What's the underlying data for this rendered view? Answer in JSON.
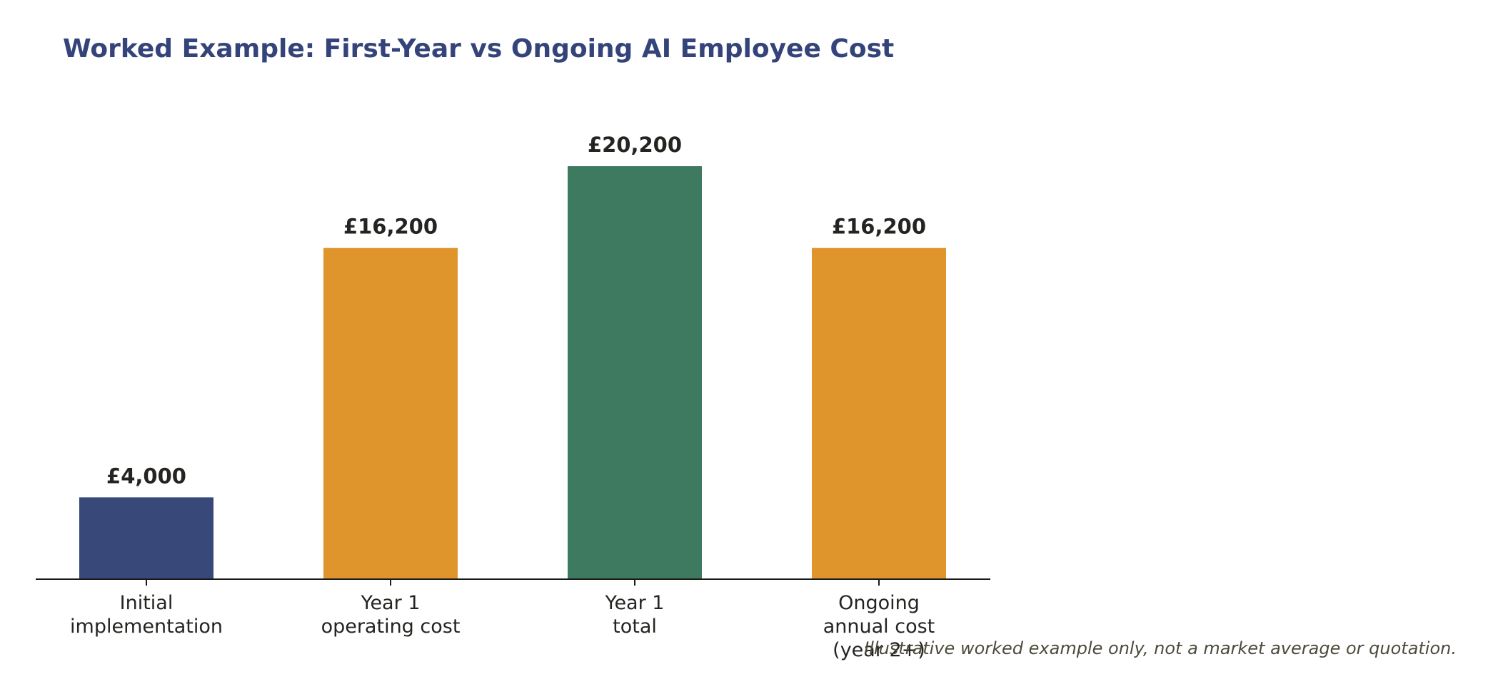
{
  "chart_data": {
    "type": "bar",
    "title": "Worked Example: First-Year vs Ongoing AI Employee Cost",
    "categories": [
      [
        "Initial",
        "implementation"
      ],
      [
        "Year 1",
        "operating cost"
      ],
      [
        "Year 1",
        "total"
      ],
      [
        "Ongoing",
        "annual cost",
        "(year 2+)"
      ]
    ],
    "values": [
      4000,
      16200,
      20200,
      16200
    ],
    "data_labels": [
      "£4,000",
      "£16,200",
      "£20,200",
      "£16,200"
    ],
    "colors": [
      "#384878",
      "#df952c",
      "#3e7a5f",
      "#df952c"
    ],
    "xlabel": "",
    "ylabel": "",
    "y_axis_visible": false,
    "grid": false,
    "footnote": "Illustrative worked example only, not a market average or quotation."
  }
}
